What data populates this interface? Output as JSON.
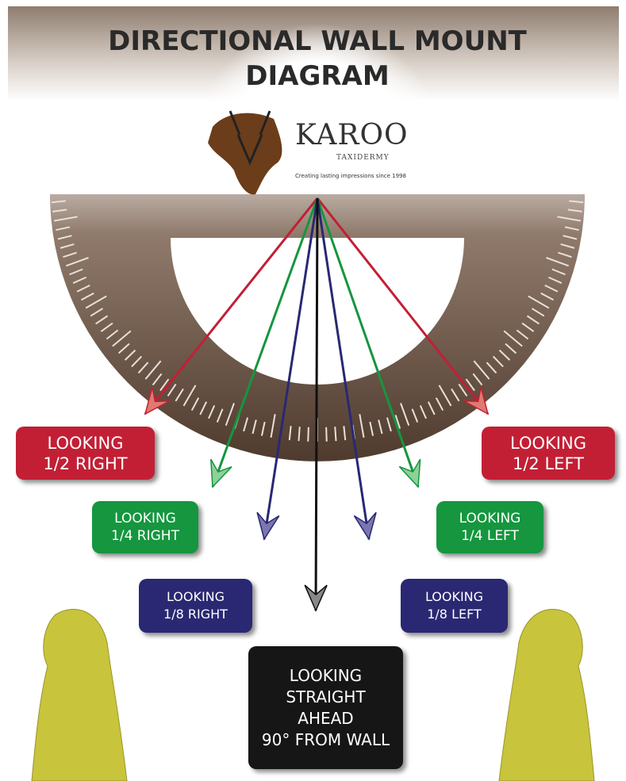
{
  "header": {
    "title": "DIRECTIONAL WALL MOUNT DIAGRAM"
  },
  "logo": {
    "name": "KAROO",
    "subtitle": "TAXIDERMY",
    "tagline": "Creating lasting impressions since 1998"
  },
  "labels": [
    {
      "looking": "LOOKING",
      "fraction": "1/2",
      "direction": "RIGHT"
    },
    {
      "looking": "LOOKING",
      "fraction": "1/4",
      "direction": "RIGHT"
    },
    {
      "looking": "LOOKING",
      "fraction": "1/8",
      "direction": "RIGHT"
    },
    {
      "looking": "LOOKING",
      "fraction": "1/8",
      "direction": "LEFT"
    },
    {
      "looking": "LOOKING",
      "fraction": "1/4",
      "direction": "LEFT"
    },
    {
      "looking": "LOOKING",
      "fraction": "1/2",
      "direction": "LEFT"
    }
  ],
  "straight": {
    "lines": [
      "LOOKING",
      "STRAIGHT",
      "AHEAD",
      "90° FROM WALL"
    ]
  }
}
